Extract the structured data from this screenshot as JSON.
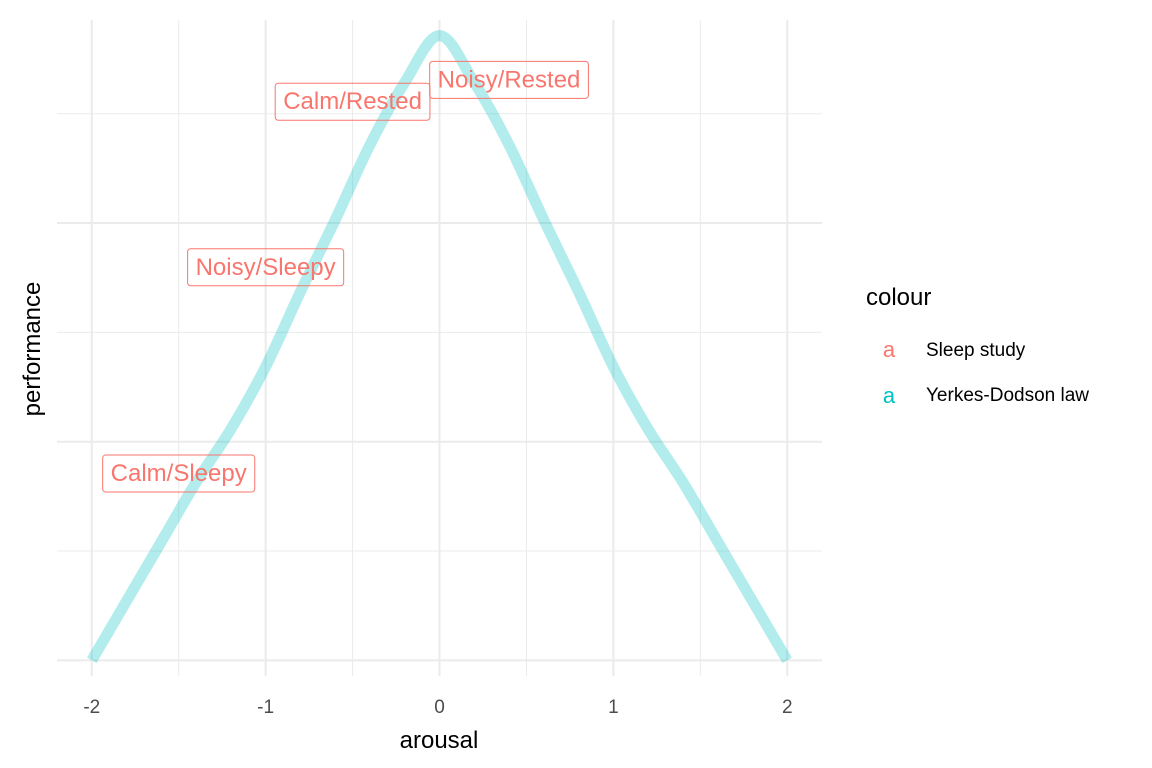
{
  "chart_data": {
    "type": "line",
    "xlabel": "arousal",
    "ylabel": "performance",
    "xlim": [
      -2.2,
      2.2
    ],
    "ylim": [
      -1.05,
      1.05
    ],
    "x_ticks": [
      -2,
      -1,
      0,
      1,
      2
    ],
    "x_tick_labels": [
      "-2",
      "-1",
      "0",
      "1",
      "2"
    ],
    "x_minor_ticks": [
      -1.5,
      -0.5,
      0.5,
      1.5
    ],
    "y_gridlines": [
      -1,
      -0.65,
      -0.3,
      0.05,
      0.4,
      0.75
    ],
    "y_tick_labels_shown": false,
    "grid": true,
    "curve": {
      "name": "Yerkes-Dodson law",
      "color": "#00BFC4",
      "x": [
        -2,
        -1.8,
        -1.6,
        -1.4,
        -1.2,
        -1,
        -0.8,
        -0.6,
        -0.4,
        -0.2,
        0,
        0.2,
        0.4,
        0.6,
        0.8,
        1,
        1.2,
        1.4,
        1.6,
        1.8,
        2
      ],
      "y": [
        -1,
        -0.81,
        -0.62,
        -0.43,
        -0.26,
        -0.06,
        0.18,
        0.41,
        0.65,
        0.85,
        1.0,
        0.85,
        0.65,
        0.41,
        0.18,
        -0.06,
        -0.26,
        -0.43,
        -0.62,
        -0.81,
        -1
      ]
    },
    "annotations": {
      "name": "Sleep study",
      "color": "#F8766D",
      "points": [
        {
          "label": "Calm/Sleepy",
          "x": -1.5,
          "y": -0.4
        },
        {
          "label": "Noisy/Sleepy",
          "x": -1.0,
          "y": 0.26
        },
        {
          "label": "Calm/Rested",
          "x": -0.5,
          "y": 0.79
        },
        {
          "label": "Noisy/Rested",
          "x": 0.4,
          "y": 0.86
        }
      ]
    },
    "legend": {
      "title": "colour",
      "position": "right",
      "key_glyph": "a",
      "entries": [
        {
          "label": "Sleep study",
          "color": "#F8766D"
        },
        {
          "label": "Yerkes-Dodson law",
          "color": "#00BFC4"
        }
      ]
    }
  }
}
